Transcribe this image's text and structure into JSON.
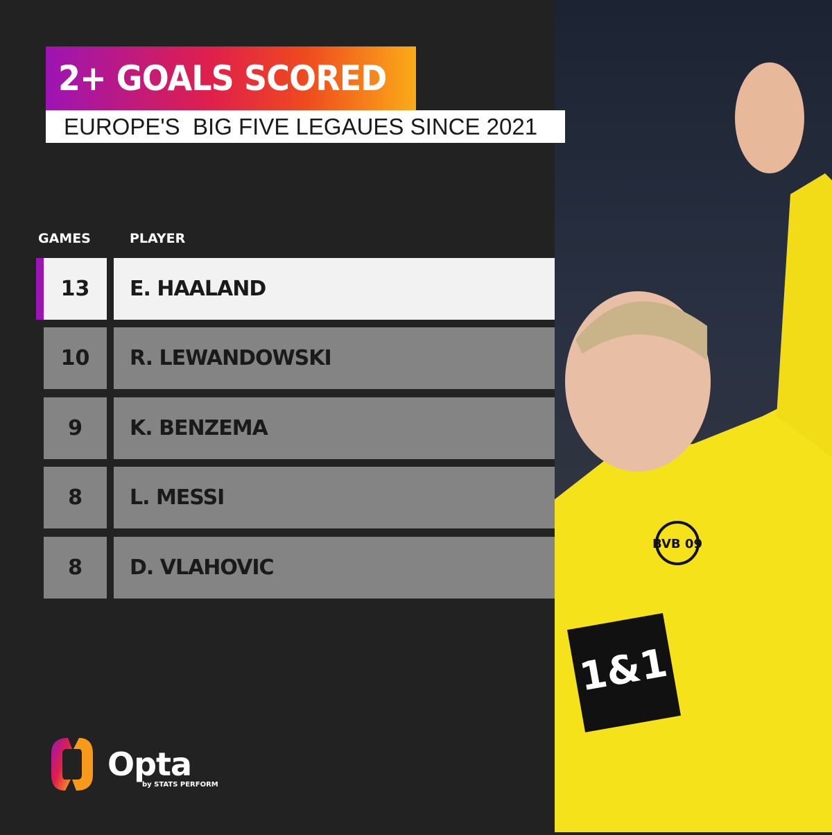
{
  "title": "2+ GOALS SCORED",
  "subtitle": "EUROPE'S  BIG FIVE LEGAUES SINCE 2021",
  "colors": {
    "accent": "#9c14b4",
    "gradient_start": "#9c14b4",
    "gradient_end": "#fbab17",
    "background": "#222222",
    "row": "#848484",
    "highlight_row": "#f2f2f2",
    "shirt": "#f5e21a"
  },
  "chart_data": {
    "type": "table",
    "columns": [
      "GAMES",
      "PLAYER"
    ],
    "rows": [
      {
        "games": "13",
        "player": "E. HAALAND",
        "highlight": true
      },
      {
        "games": "10",
        "player": "R. LEWANDOWSKI",
        "highlight": false
      },
      {
        "games": "9",
        "player": "K. BENZEMA",
        "highlight": false
      },
      {
        "games": "8",
        "player": "L. MESSI",
        "highlight": false
      },
      {
        "games": "8",
        "player": "D. VLAHOVIC",
        "highlight": false
      }
    ]
  },
  "logo": {
    "name": "Opta",
    "tagline": "by STATS PERFORM"
  },
  "photo": {
    "shirt_sponsor": "1&1",
    "badge": "BVB 09"
  }
}
